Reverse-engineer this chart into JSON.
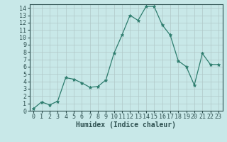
{
  "x": [
    0,
    1,
    2,
    3,
    4,
    5,
    6,
    7,
    8,
    9,
    10,
    11,
    12,
    13,
    14,
    15,
    16,
    17,
    18,
    19,
    20,
    21,
    22,
    23
  ],
  "y": [
    0.3,
    1.2,
    0.8,
    1.3,
    4.5,
    4.3,
    3.8,
    3.2,
    3.3,
    4.2,
    7.8,
    10.3,
    13.0,
    12.3,
    14.2,
    14.2,
    11.7,
    10.3,
    6.8,
    6.0,
    3.5,
    7.8,
    6.3,
    6.3
  ],
  "line_color": "#2e7d6e",
  "marker": "*",
  "marker_size": 3.5,
  "bg_color": "#c8e8e8",
  "grid_color": "#b0c8c8",
  "xlabel": "Humidex (Indice chaleur)",
  "xlabel_fontsize": 7,
  "tick_fontsize": 6,
  "xlim": [
    -0.5,
    23.5
  ],
  "ylim": [
    0,
    14.5
  ],
  "yticks": [
    0,
    1,
    2,
    3,
    4,
    5,
    6,
    7,
    8,
    9,
    10,
    11,
    12,
    13,
    14
  ],
  "xticks": [
    0,
    1,
    2,
    3,
    4,
    5,
    6,
    7,
    8,
    9,
    10,
    11,
    12,
    13,
    14,
    15,
    16,
    17,
    18,
    19,
    20,
    21,
    22,
    23
  ]
}
